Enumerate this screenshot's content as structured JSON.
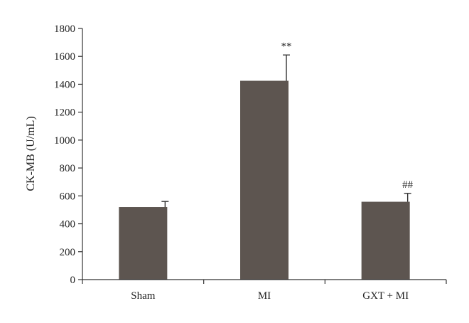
{
  "chart_data": {
    "type": "bar",
    "categories": [
      "Sham",
      "MI",
      "GXT + MI"
    ],
    "values": [
      520,
      1425,
      558
    ],
    "errors": [
      40,
      185,
      60
    ],
    "annotations": [
      "",
      "**",
      "##"
    ],
    "ylabel": "CK-MB (U/mL)",
    "xlabel": "",
    "ylim": [
      0,
      1800
    ],
    "yticks": [
      0,
      200,
      400,
      600,
      800,
      1000,
      1200,
      1400,
      1600,
      1800
    ],
    "grid": false,
    "bar_color": "#5d5550",
    "axis_color": "#333333"
  }
}
